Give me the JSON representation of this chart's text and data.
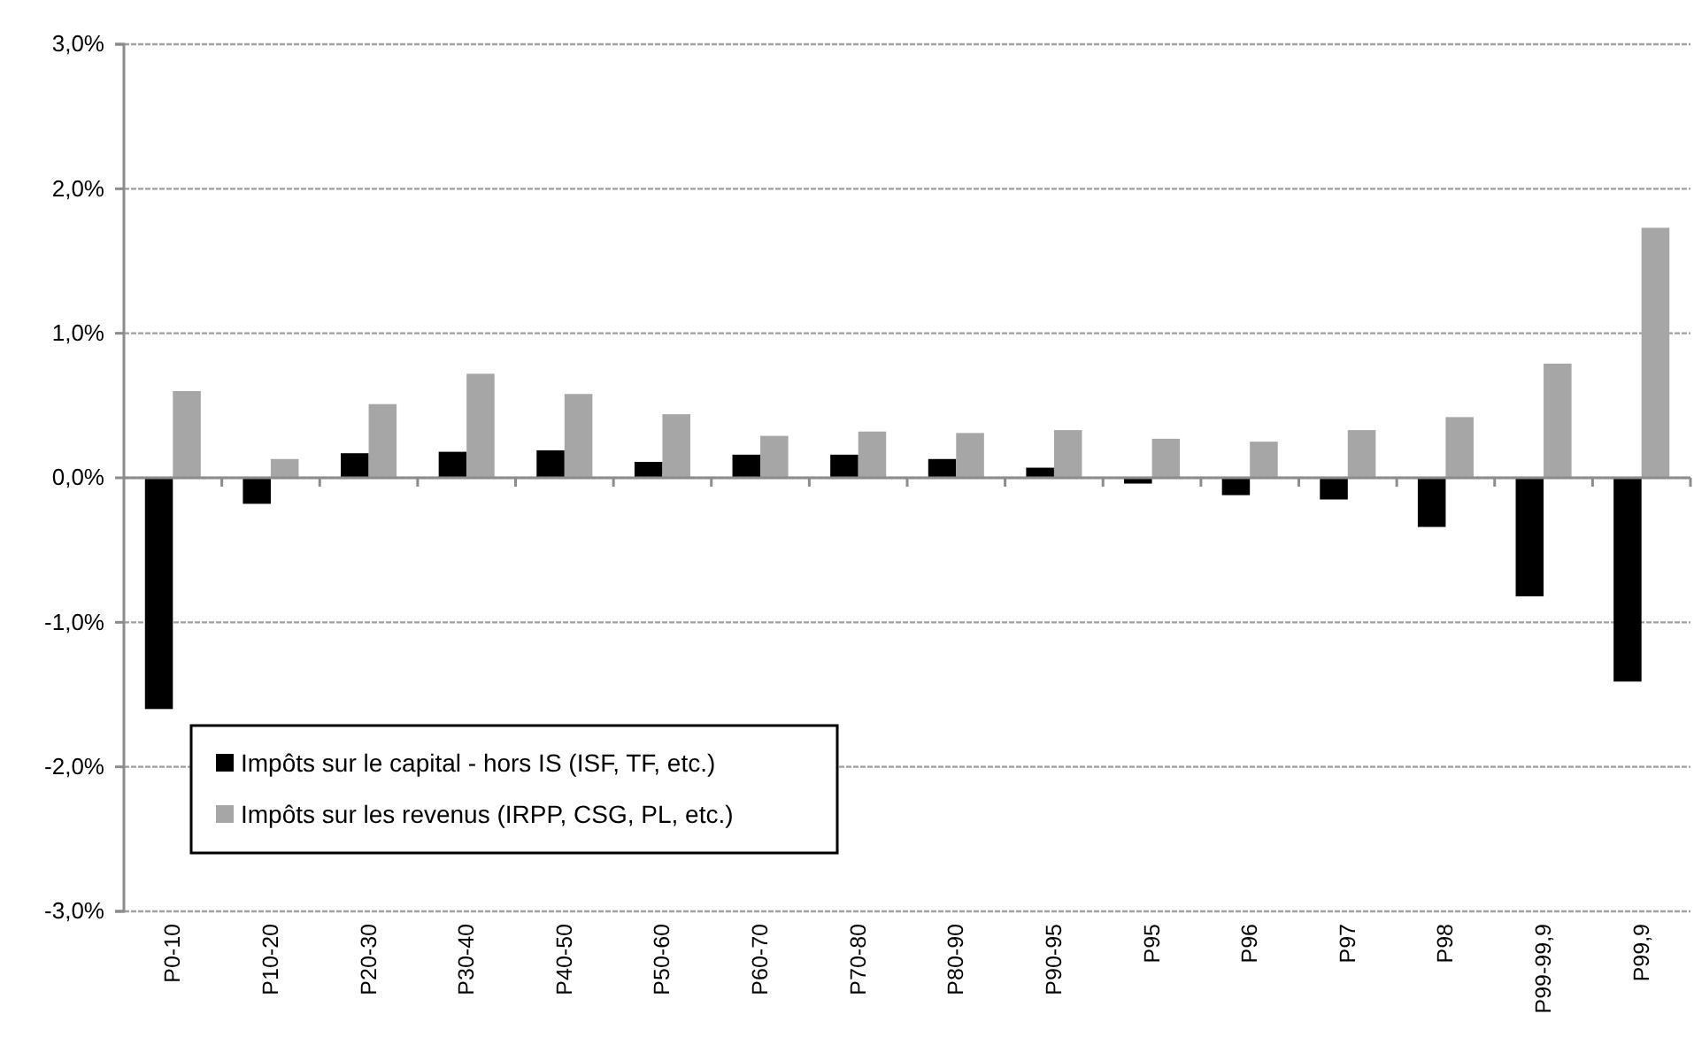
{
  "chart_data": {
    "type": "bar",
    "categories": [
      "P0-10",
      "P10-20",
      "P20-30",
      "P30-40",
      "P40-50",
      "P50-60",
      "P60-70",
      "P70-80",
      "P80-90",
      "P90-95",
      "P95",
      "P96",
      "P97",
      "P98",
      "P99-99,9",
      "P99,9"
    ],
    "series": [
      {
        "name": "Impôts sur le capital - hors IS (ISF, TF, etc.)",
        "color": "#000000",
        "values": [
          -1.6,
          -0.18,
          0.17,
          0.18,
          0.19,
          0.11,
          0.16,
          0.16,
          0.13,
          0.07,
          -0.04,
          -0.12,
          -0.15,
          -0.34,
          -0.82,
          -1.41
        ]
      },
      {
        "name": "Impôts sur les revenus (IRPP, CSG, PL, etc.)",
        "color": "#a6a6a6",
        "values": [
          0.6,
          0.13,
          0.51,
          0.72,
          0.58,
          0.44,
          0.29,
          0.32,
          0.31,
          0.33,
          0.27,
          0.25,
          0.33,
          0.42,
          0.79,
          1.73
        ]
      }
    ],
    "ylim": [
      -3,
      3
    ],
    "yticks": [
      {
        "value": -3,
        "label": "-3,0%"
      },
      {
        "value": -2,
        "label": "-2,0%"
      },
      {
        "value": -1,
        "label": "-1,0%"
      },
      {
        "value": 0,
        "label": "0,0%"
      },
      {
        "value": 1,
        "label": "1,0%"
      },
      {
        "value": 2,
        "label": "2,0%"
      },
      {
        "value": 3,
        "label": "3,0%"
      }
    ],
    "grid": "y",
    "legend": "bottom left"
  }
}
